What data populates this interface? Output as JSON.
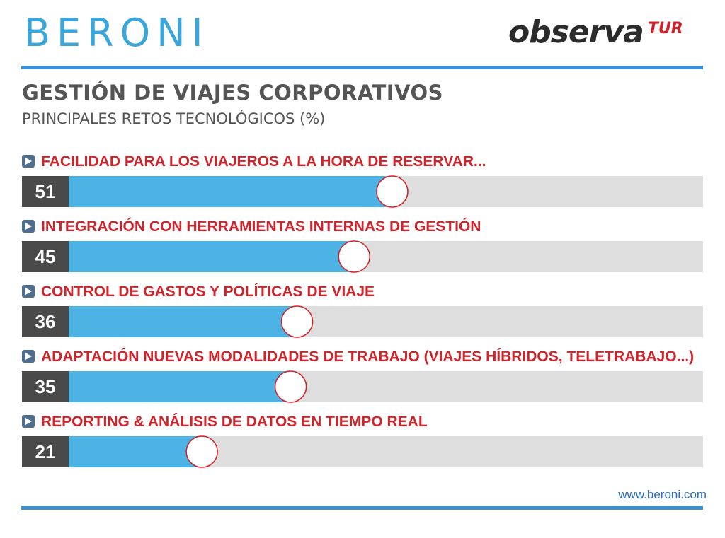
{
  "logos": {
    "brand": "BERONI",
    "partner_main": "observa",
    "partner_sub": "TUR"
  },
  "header": {
    "title": "GESTIÓN DE VIAJES CORPORATIVOS",
    "subtitle": "PRINCIPALES RETOS TECNOLÓGICOS  (%)"
  },
  "footer": {
    "url": "www.beroni.com"
  },
  "colors": {
    "bar_fill": "#4db3e4",
    "bar_track": "#dedede",
    "value_box": "#4a4a4a",
    "label_red": "#d2232a",
    "marker_outline": "#d2232a"
  },
  "chart_data": {
    "type": "bar",
    "orientation": "horizontal",
    "title": "GESTIÓN DE VIAJES CORPORATIVOS",
    "subtitle": "PRINCIPALES RETOS TECNOLÓGICOS  (%)",
    "xlim": [
      0,
      100
    ],
    "grid": false,
    "categories": [
      "FACILIDAD PARA LOS VIAJEROS A LA HORA DE RESERVAR...",
      "INTEGRACIÓN CON HERRAMIENTAS INTERNAS DE GESTIÓN",
      "CONTROL DE GASTOS  Y POLÍTICAS DE VIAJE",
      "ADAPTACIÓN NUEVAS MODALIDADES DE TRABAJO  (VIAJES HÍBRIDOS, TELETRABAJO...)",
      "REPORTING & ANÁLISIS DE DATOS EN TIEMPO REAL"
    ],
    "values": [
      51,
      45,
      36,
      35,
      21
    ]
  }
}
